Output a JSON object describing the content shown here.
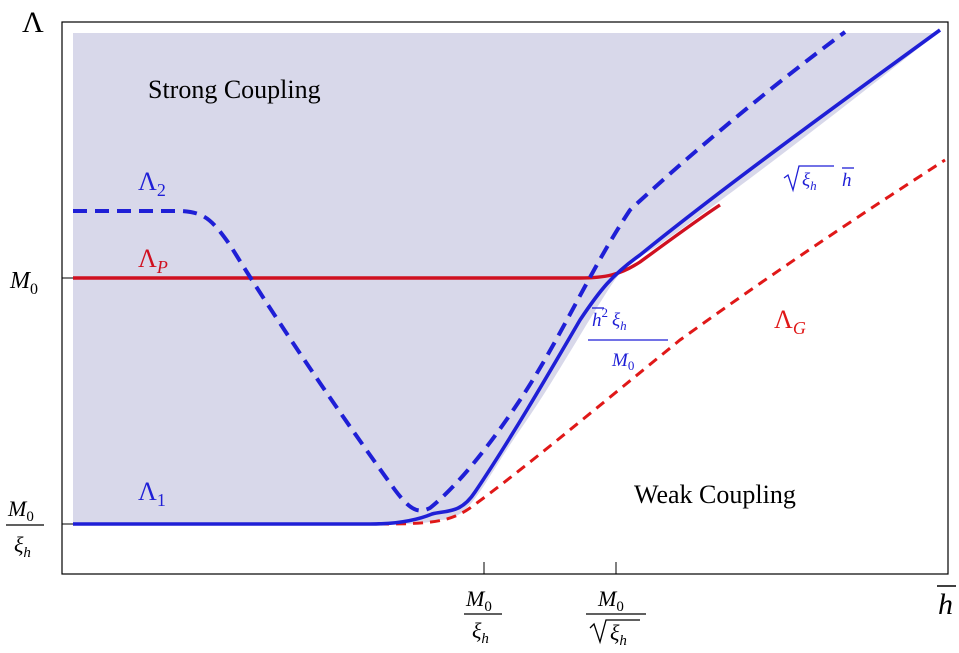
{
  "axes": {
    "y_title": "Λ",
    "x_title": "h",
    "y_ticks": [
      {
        "kind": "plain",
        "base": "M",
        "sub": "0"
      },
      {
        "kind": "fraction",
        "num_base": "M",
        "num_sub": "0",
        "den_base": "ξ",
        "den_sub": "h"
      }
    ],
    "x_ticks": [
      {
        "kind": "fraction",
        "num_base": "M",
        "num_sub": "0",
        "den_base": "ξ",
        "den_sub": "h"
      },
      {
        "kind": "fraction_sqrt",
        "num_base": "M",
        "num_sub": "0",
        "den_base": "ξ",
        "den_sub": "h"
      }
    ]
  },
  "regions": {
    "strong": "Strong Coupling",
    "weak": "Weak Coupling"
  },
  "curves": {
    "lambda1": {
      "base": "Λ",
      "sub": "1",
      "color": "#1f1fd6"
    },
    "lambda2": {
      "base": "Λ",
      "sub": "2",
      "color": "#1f1fd6"
    },
    "lambdaP": {
      "base": "Λ",
      "sub": "P",
      "color": "#d01020"
    },
    "lambdaG": {
      "base": "Λ",
      "sub": "G",
      "color": "#e01818"
    }
  },
  "annotations": {
    "sqrt_label": {
      "rad_base": "ξ",
      "rad_sub": "h",
      "tail": "h"
    },
    "frac_label": {
      "num_base": "h",
      "num_sup": "2",
      "num_mid": "ξ",
      "num_sub": "h",
      "den_base": "M",
      "den_sub": "0"
    }
  },
  "colors": {
    "region_fill": "#d8d8ea",
    "blue": "#1f1fd6",
    "red": "#d01020"
  }
}
